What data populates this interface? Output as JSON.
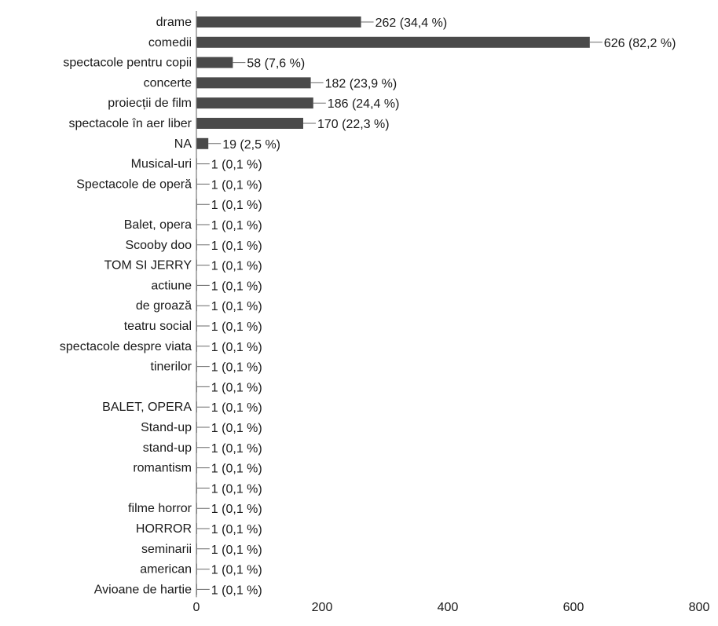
{
  "chart_data": {
    "type": "bar",
    "orientation": "horizontal",
    "title": "",
    "xlabel": "",
    "ylabel": "",
    "xlim": [
      0,
      800
    ],
    "x_ticks": [
      "0",
      "200",
      "400",
      "600",
      "800"
    ],
    "grid": false,
    "legend": "none",
    "bar_color": "#4a4a4a",
    "categories": [
      "drame",
      "comedii",
      "spectacole pentru copii",
      "concerte",
      "proiecții de film",
      "spectacole în aer liber",
      "NA",
      "Musical-uri",
      "Spectacole de operă",
      "",
      "Balet, opera",
      "Scooby doo",
      "TOM SI JERRY",
      "actiune",
      "de groază",
      "teatru social",
      "spectacole despre viata",
      "tinerilor",
      "",
      "BALET, OPERA",
      "Stand-up",
      "stand-up",
      "romantism",
      "",
      "filme horror",
      "HORROR",
      "seminarii",
      "american",
      "Avioane de hartie"
    ],
    "values": [
      262,
      626,
      58,
      182,
      186,
      170,
      19,
      1,
      1,
      1,
      1,
      1,
      1,
      1,
      1,
      1,
      1,
      1,
      1,
      1,
      1,
      1,
      1,
      1,
      1,
      1,
      1,
      1,
      1
    ],
    "value_labels": [
      "262 (34,4 %)",
      "626 (82,2 %)",
      "58 (7,6 %)",
      "182 (23,9 %)",
      "186 (24,4 %)",
      "170 (22,3 %)",
      "19 (2,5 %)",
      "1 (0,1 %)",
      "1 (0,1 %)",
      "1 (0,1 %)",
      "1 (0,1 %)",
      "1 (0,1 %)",
      "1 (0,1 %)",
      "1 (0,1 %)",
      "1 (0,1 %)",
      "1 (0,1 %)",
      "1 (0,1 %)",
      "1 (0,1 %)",
      "1 (0,1 %)",
      "1 (0,1 %)",
      "1 (0,1 %)",
      "1 (0,1 %)",
      "1 (0,1 %)",
      "1 (0,1 %)",
      "1 (0,1 %)",
      "1 (0,1 %)",
      "1 (0,1 %)",
      "1 (0,1 %)",
      "1 (0,1 %)"
    ]
  }
}
